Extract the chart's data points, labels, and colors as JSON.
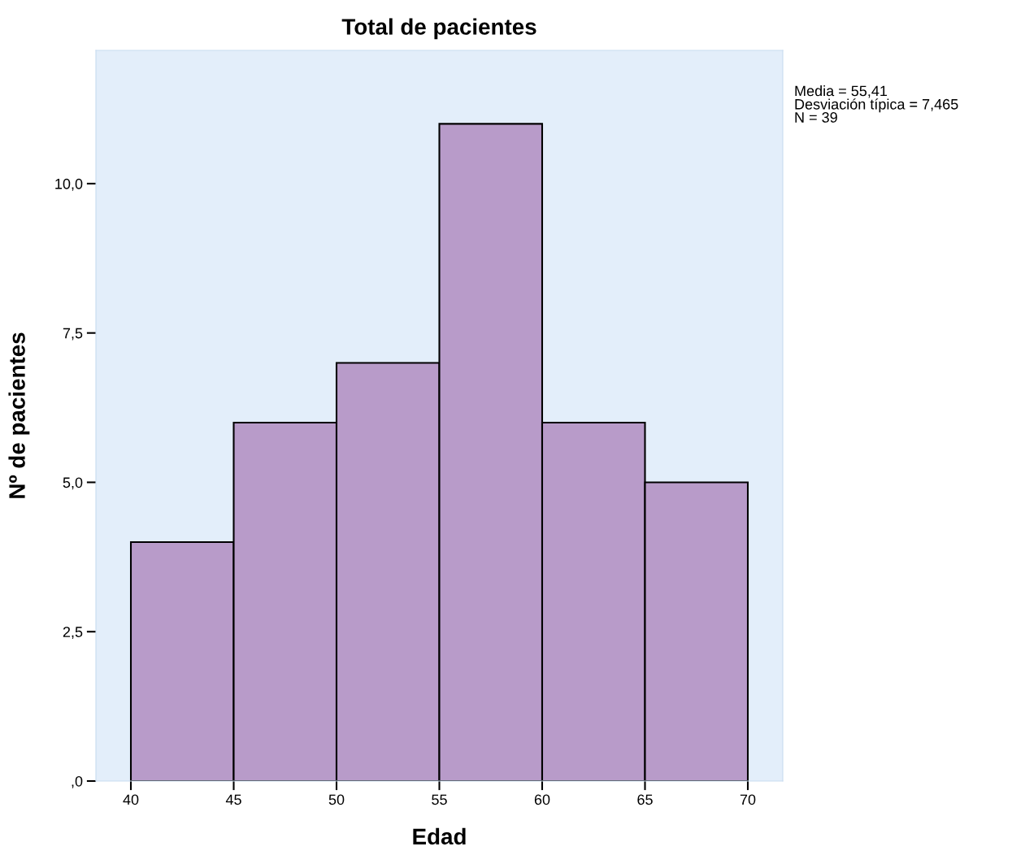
{
  "chart_data": {
    "type": "histogram",
    "title": "Total de pacientes",
    "xlabel": "Edad",
    "ylabel": "Nº de pacientes",
    "bins": [
      40,
      45,
      50,
      55,
      60,
      65,
      70
    ],
    "values": [
      4,
      6,
      7,
      11,
      6,
      5
    ],
    "color": "#b89bc9",
    "xlim": [
      38.3,
      71.7
    ],
    "ylim": [
      0,
      12.23
    ],
    "xticks": [
      40,
      45,
      50,
      55,
      60,
      65,
      70
    ],
    "yticks": [
      {
        "value": 0,
        "label": ",0"
      },
      {
        "value": 2.5,
        "label": "2,5"
      },
      {
        "value": 5,
        "label": "5,0"
      },
      {
        "value": 7.5,
        "label": "7,5"
      },
      {
        "value": 10,
        "label": "10,0"
      }
    ],
    "grid": false,
    "annotations": [
      "Media = 55,41\nDesviación típica = 7,465\nN = 39"
    ]
  }
}
